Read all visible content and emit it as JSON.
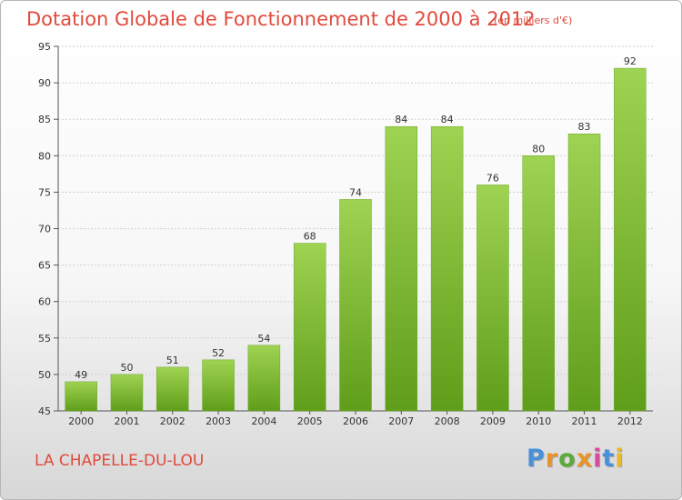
{
  "page": {
    "title": "Dotation Globale de Fonctionnement de 2000 à 2012",
    "subtitle": "(en milliers d'€)",
    "commune": "LA CHAPELLE-DU-LOU",
    "logo": {
      "letters": [
        "P",
        "r",
        "o",
        "x",
        "i",
        "t",
        "i"
      ],
      "colors": [
        "#4a90d9",
        "#e8942c",
        "#5aaa3c",
        "#e8942c",
        "#d94a9a",
        "#4a90d9",
        "#e8b82c"
      ]
    }
  },
  "chart_data": {
    "type": "bar",
    "title": "Dotation Globale de Fonctionnement de 2000 à 2012",
    "subtitle": "(en milliers d'€)",
    "categories": [
      "2000",
      "2001",
      "2002",
      "2003",
      "2004",
      "2005",
      "2006",
      "2007",
      "2008",
      "2009",
      "2010",
      "2011",
      "2012"
    ],
    "values": [
      49,
      50,
      51,
      52,
      54,
      68,
      74,
      84,
      84,
      76,
      80,
      83,
      92
    ],
    "xlabel": "",
    "ylabel": "",
    "ylim": [
      45,
      95
    ],
    "yticks": [
      45,
      50,
      55,
      60,
      65,
      70,
      75,
      80,
      85,
      90,
      95
    ],
    "grid": true,
    "bar_color": "#8cc63f"
  }
}
